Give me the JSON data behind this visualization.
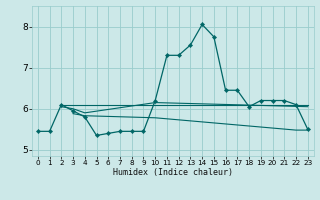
{
  "xlabel": "Humidex (Indice chaleur)",
  "xlim": [
    -0.5,
    23.5
  ],
  "ylim": [
    4.85,
    8.5
  ],
  "yticks": [
    5,
    6,
    7,
    8
  ],
  "xticks": [
    0,
    1,
    2,
    3,
    4,
    5,
    6,
    7,
    8,
    9,
    10,
    11,
    12,
    13,
    14,
    15,
    16,
    17,
    18,
    19,
    20,
    21,
    22,
    23
  ],
  "bg_color": "#cce8e8",
  "line_color": "#006666",
  "grid_color": "#99cccc",
  "lines": [
    {
      "x": [
        0,
        1,
        2,
        3,
        4,
        5,
        6,
        7,
        8,
        9,
        10,
        11,
        12,
        13,
        14,
        15,
        16,
        17,
        18,
        19,
        20,
        21,
        22,
        23
      ],
      "y": [
        5.45,
        5.45,
        6.1,
        5.95,
        5.8,
        5.35,
        5.4,
        5.45,
        5.45,
        5.45,
        6.2,
        7.3,
        7.3,
        7.55,
        8.05,
        7.75,
        6.45,
        6.45,
        6.05,
        6.2,
        6.2,
        6.2,
        6.1,
        5.5
      ],
      "marker": true
    },
    {
      "x": [
        2,
        23
      ],
      "y": [
        6.1,
        6.1
      ],
      "marker": false
    },
    {
      "x": [
        2,
        3,
        4,
        10,
        23
      ],
      "y": [
        6.05,
        6.0,
        5.9,
        6.15,
        6.05
      ],
      "marker": false
    },
    {
      "x": [
        3,
        4,
        10,
        22,
        23
      ],
      "y": [
        5.88,
        5.83,
        5.78,
        5.48,
        5.48
      ],
      "marker": false
    }
  ]
}
